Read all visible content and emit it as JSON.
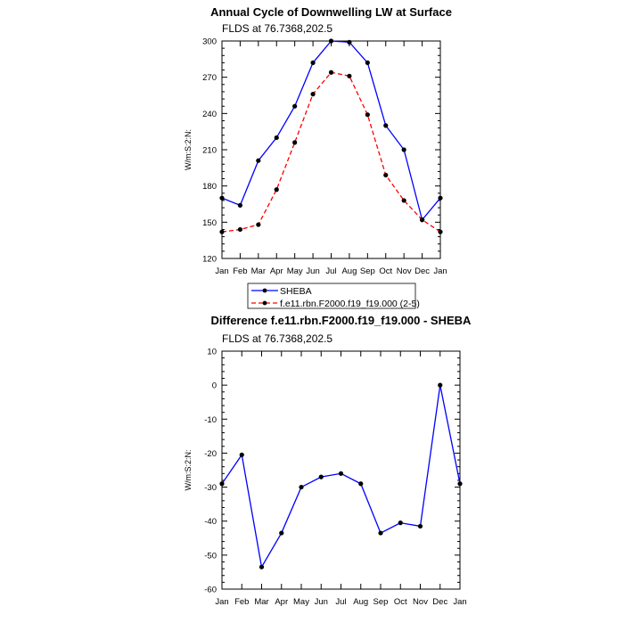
{
  "chart_data": [
    {
      "type": "line",
      "title": "Annual Cycle of Downwelling LW at Surface",
      "subtitle": "FLDS at 76.7368,202.5",
      "ylabel": "W/m:S:2:N:",
      "xlabel": "",
      "categories": [
        "Jan",
        "Feb",
        "Mar",
        "Apr",
        "May",
        "Jun",
        "Jul",
        "Aug",
        "Sep",
        "Oct",
        "Nov",
        "Dec",
        "Jan"
      ],
      "ylim": [
        120,
        300
      ],
      "yticks": [
        120,
        150,
        180,
        210,
        240,
        270,
        300
      ],
      "legend_position": "bottom-left",
      "series": [
        {
          "name": "SHEBA",
          "color": "#0000ff",
          "dash": "solid",
          "values": [
            170,
            164,
            201,
            220,
            246,
            282,
            300,
            299,
            282,
            230,
            210,
            152,
            170
          ]
        },
        {
          "name": "f.e11.rbn.F2000.f19_f19.000 (2-5)",
          "color": "#ff0000",
          "dash": "dashed",
          "values": [
            142,
            144,
            148,
            177,
            216,
            256,
            274,
            271,
            239,
            189,
            168,
            152,
            142
          ]
        }
      ]
    },
    {
      "type": "line",
      "title": "Difference f.e11.rbn.F2000.f19_f19.000 - SHEBA",
      "subtitle": "FLDS at 76.7368,202.5",
      "ylabel": "W/m:S:2:N:",
      "xlabel": "",
      "categories": [
        "Jan",
        "Feb",
        "Mar",
        "Apr",
        "May",
        "Jun",
        "Jul",
        "Aug",
        "Sep",
        "Oct",
        "Nov",
        "Dec",
        "Jan"
      ],
      "ylim": [
        -60,
        10
      ],
      "yticks": [
        -60,
        -50,
        -40,
        -30,
        -20,
        -10,
        0,
        10
      ],
      "series": [
        {
          "color": "#0000ff",
          "dash": "solid",
          "values": [
            -29,
            -20.5,
            -53.5,
            -43.5,
            -30,
            -27,
            -26,
            -29,
            -43.5,
            -40.5,
            -41.5,
            0,
            -29
          ]
        }
      ]
    }
  ]
}
